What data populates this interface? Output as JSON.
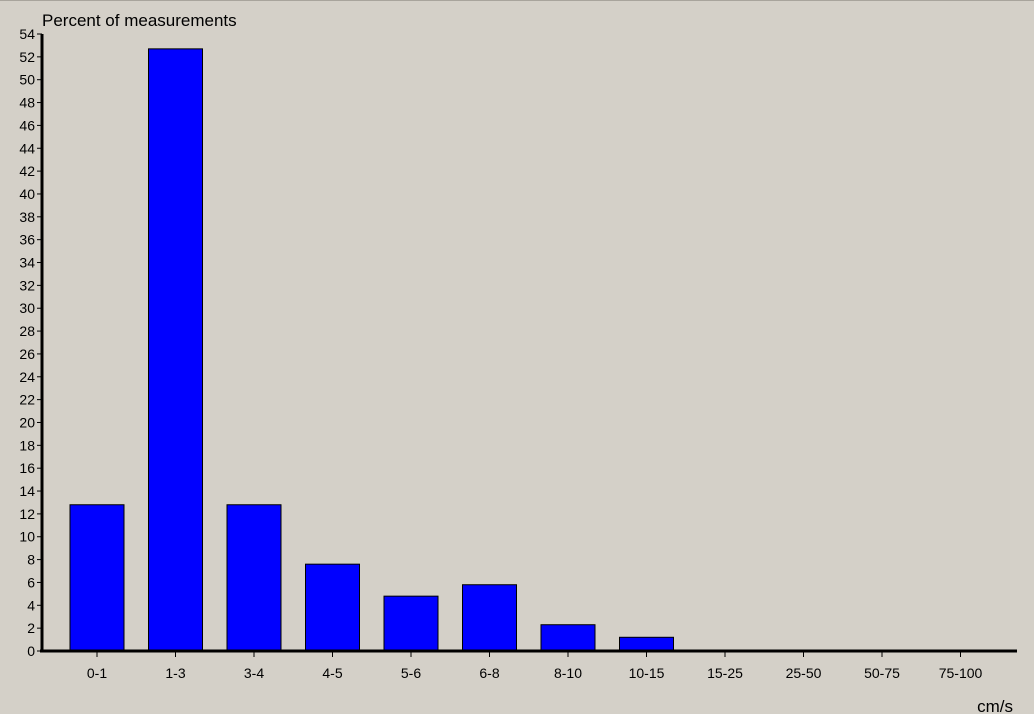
{
  "chart_data": {
    "type": "bar",
    "title": "",
    "ylabel": "Percent of measurements",
    "xlabel": "cm/s",
    "categories": [
      "0-1",
      "1-3",
      "3-4",
      "4-5",
      "5-6",
      "6-8",
      "8-10",
      "10-15",
      "15-25",
      "25-50",
      "50-75",
      "75-100"
    ],
    "values": [
      12.8,
      52.7,
      12.8,
      7.6,
      4.8,
      5.8,
      2.3,
      1.2,
      0,
      0,
      0,
      0
    ],
    "ylim": [
      0,
      54
    ],
    "ytick_step": 2,
    "grid": false,
    "legend": "none",
    "bar_color": "#0000ff",
    "bar_edge_color": "#000000",
    "background_color": "#d4d0c8"
  }
}
